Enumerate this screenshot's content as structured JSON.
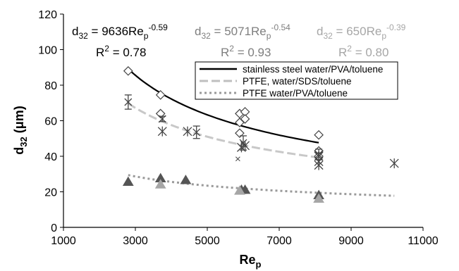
{
  "chart_data": {
    "type": "scatter",
    "xlabel": {
      "main": "Re",
      "sub": "p"
    },
    "ylabel": {
      "main": "d",
      "sub": "32",
      "unit": " (μm)"
    },
    "xlim": [
      1000,
      11000
    ],
    "ylim": [
      0,
      120
    ],
    "xticks": [
      1000,
      3000,
      5000,
      7000,
      9000,
      11000
    ],
    "yticks": [
      0,
      20,
      40,
      60,
      80,
      100,
      120
    ],
    "legend": {
      "placement": "top-right",
      "entries": [
        {
          "label": "stainless steel water/PVA/toluene",
          "style": "solid",
          "color": "#000000"
        },
        {
          "label": "PTFE, water/SDS/toluene",
          "style": "long-dash",
          "color": "#bfbfbf"
        },
        {
          "label": "PTFE water/PVA/toluene",
          "style": "dotted",
          "color": "#9a9a9a"
        }
      ]
    },
    "equations": [
      {
        "lhs": "d",
        "lhs_sub": "32",
        "rhs": " = 9636Re",
        "rhs_sub": "p",
        "exp": "-0.59",
        "r2_label": "R",
        "r2_exp": "2",
        "r2_value": " = 0.78",
        "color": "#000000"
      },
      {
        "lhs": "d",
        "lhs_sub": "32",
        "rhs": " = 5071Re",
        "rhs_sub": "p",
        "exp": "-0.54",
        "r2_label": "R",
        "r2_exp": "2",
        "r2_value": " = 0.93",
        "color": "#7f7f7f"
      },
      {
        "lhs": "d",
        "lhs_sub": "32",
        "rhs": " = 650Re",
        "rhs_sub": "p",
        "exp": "-0.39",
        "r2_label": "R",
        "r2_exp": "2",
        "r2_value": " = 0.80",
        "color": "#a6a6a6"
      }
    ],
    "series": [
      {
        "marker": "diamond",
        "color": "#444444",
        "points": [
          [
            2800,
            88
          ],
          [
            3700,
            74.5
          ],
          [
            3700,
            64
          ],
          [
            5900,
            64
          ],
          [
            5900,
            59
          ],
          [
            5900,
            53
          ],
          [
            6050,
            65
          ],
          [
            6050,
            61
          ],
          [
            8100,
            52
          ],
          [
            8100,
            43
          ],
          [
            8100,
            40
          ]
        ]
      },
      {
        "marker": "asterisk",
        "color": "#444444",
        "points": [
          [
            3750,
            54
          ],
          [
            4450,
            54
          ],
          [
            5950,
            45
          ],
          [
            6050,
            46
          ],
          [
            8100,
            40
          ],
          [
            8100,
            37
          ],
          [
            8100,
            35
          ],
          [
            10200,
            36
          ]
        ]
      },
      {
        "marker": "errorbar",
        "color": "#444444",
        "points": [
          [
            2800,
            70.5,
            4
          ],
          [
            3750,
            61,
            1.5
          ],
          [
            4700,
            53.5,
            3.5
          ],
          [
            6000,
            47.5,
            4
          ],
          [
            8100,
            41,
            3
          ]
        ]
      },
      {
        "marker": "x",
        "color": "#444444",
        "points": [
          [
            5850,
            38.5
          ]
        ]
      },
      {
        "marker": "triangle",
        "color": "#555555",
        "points": [
          [
            2800,
            25.5
          ],
          [
            3700,
            27.5
          ],
          [
            4400,
            26.5
          ],
          [
            5950,
            21
          ],
          [
            6050,
            21
          ],
          [
            8100,
            18
          ]
        ]
      },
      {
        "marker": "triangle",
        "color": "#a6a6a6",
        "points": [
          [
            3700,
            24
          ],
          [
            5900,
            20.5
          ],
          [
            8100,
            16
          ]
        ]
      }
    ],
    "fits": [
      {
        "style": "solid",
        "color": "#000000",
        "coef": 9636,
        "exp": -0.59,
        "x_range": [
          2800,
          8100
        ]
      },
      {
        "style": "dotted",
        "color": "#9a9a9a",
        "coef": 650,
        "exp": -0.39,
        "x_range": [
          2800,
          10200
        ]
      },
      {
        "style": "long-dash",
        "color": "#c8c8c8",
        "coef": 5071,
        "exp": -0.54,
        "x_range": [
          2800,
          8100
        ]
      }
    ]
  }
}
